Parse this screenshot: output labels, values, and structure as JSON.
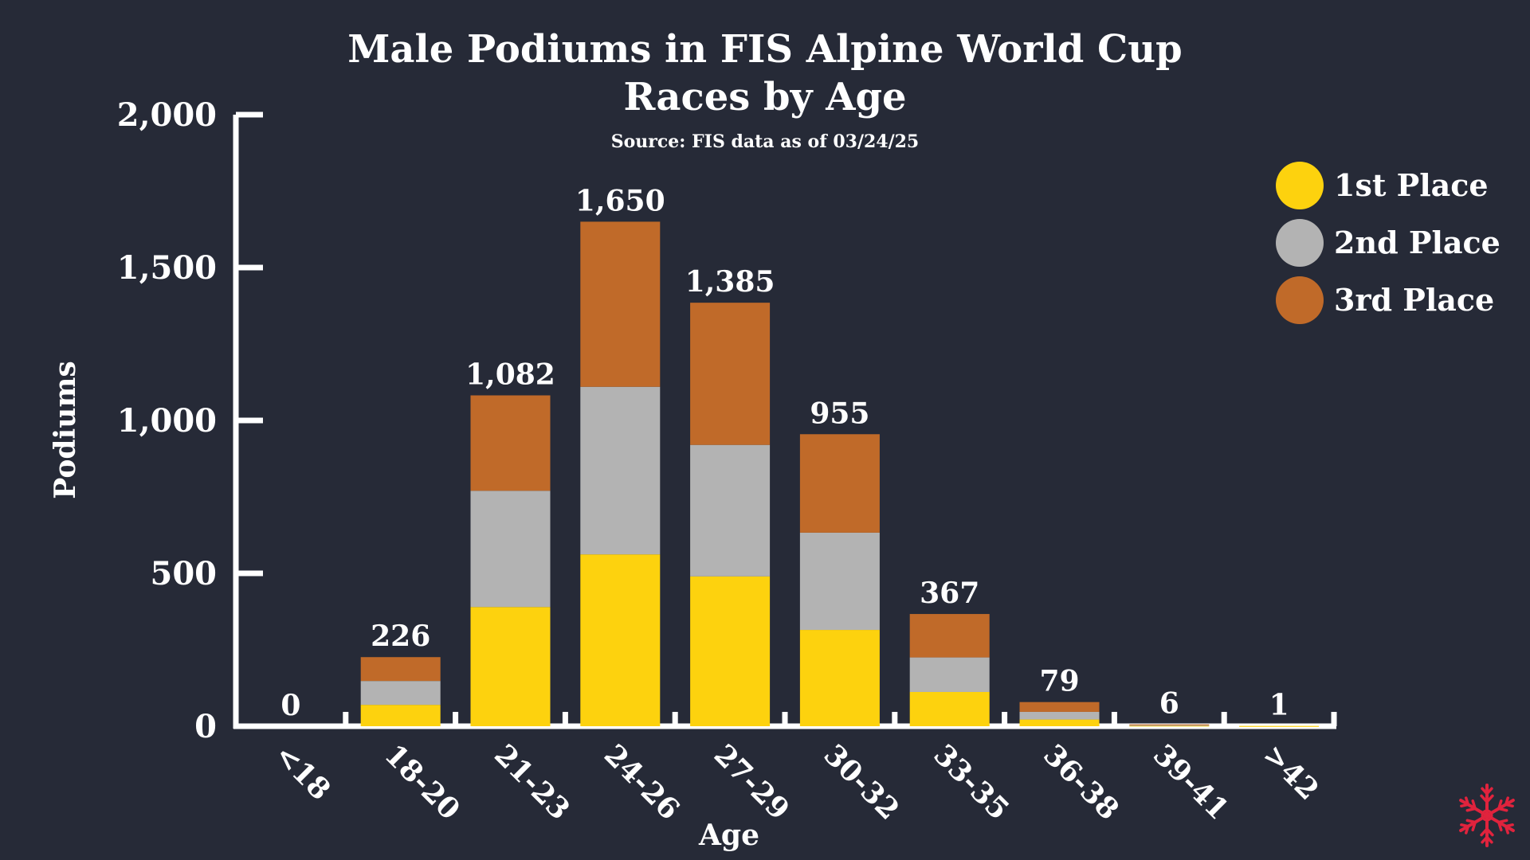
{
  "colors": {
    "background": "#262a37",
    "text": "#ffffff",
    "first": "#fdd20e",
    "second": "#b3b3b3",
    "third": "#c06a29",
    "logo": "#e0233d"
  },
  "logo": {
    "icon": "snowflake-icon"
  },
  "chart_data": {
    "type": "bar",
    "stacked": true,
    "title_lines": [
      "Male Podiums in FIS Alpine World Cup",
      "Races by Age"
    ],
    "subtitle": "Source: FIS data as of 03/24/25",
    "xlabel": "Age",
    "ylabel": "Podiums",
    "ylim": [
      0,
      2000
    ],
    "yticks": [
      0,
      500,
      1000,
      1500,
      2000
    ],
    "ytick_labels": [
      "0",
      "500",
      "1,000",
      "1,500",
      "2,000"
    ],
    "legend_position": "top-right",
    "categories": [
      "<18",
      "18-20",
      "21-23",
      "24-26",
      "27-29",
      "30-32",
      "33-35",
      "36-38",
      "39-41",
      ">42"
    ],
    "series": [
      {
        "name": "1st Place",
        "color": "#fdd20e",
        "values": [
          0,
          70,
          390,
          562,
          490,
          315,
          112,
          22,
          2,
          1
        ]
      },
      {
        "name": "2nd Place",
        "color": "#b3b3b3",
        "values": [
          0,
          78,
          380,
          548,
          430,
          318,
          113,
          25,
          2,
          0
        ]
      },
      {
        "name": "3rd Place",
        "color": "#c06a29",
        "values": [
          0,
          78,
          312,
          540,
          465,
          322,
          142,
          32,
          2,
          0
        ]
      }
    ],
    "totals": [
      0,
      226,
      1082,
      1650,
      1385,
      955,
      367,
      79,
      6,
      1
    ],
    "total_labels": [
      "0",
      "226",
      "1,082",
      "1,650",
      "1,385",
      "955",
      "367",
      "79",
      "6",
      "1"
    ]
  }
}
